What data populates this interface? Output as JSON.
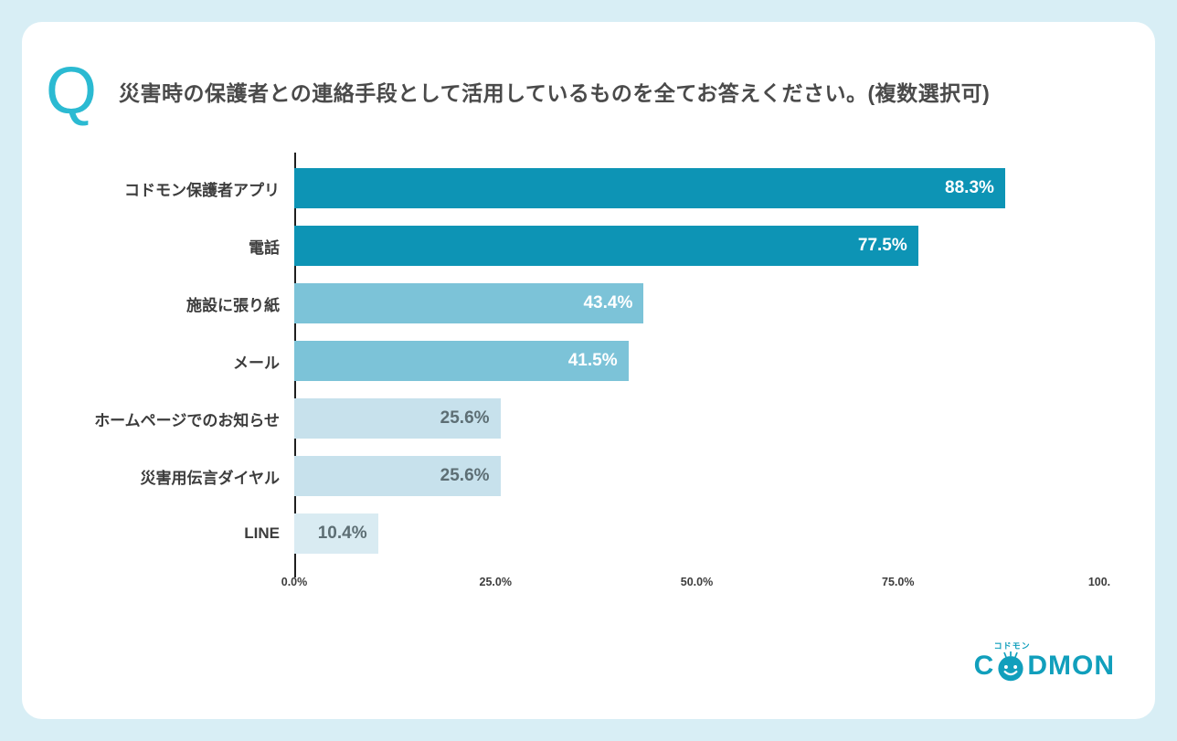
{
  "page": {
    "background": "#d8eef5",
    "card_background": "#ffffff"
  },
  "question": {
    "icon": "Q",
    "icon_color": "#2bbad2",
    "text": "災害時の保護者との連絡手段として活用しているものを全てお答えください。(複数選択可)"
  },
  "chart_data": {
    "type": "bar",
    "orientation": "horizontal",
    "title": "災害時の保護者との連絡手段として活用しているものを全てお答えください。(複数選択可)",
    "categories": [
      "コドモン保護者アプリ",
      "電話",
      "施設に張り紙",
      "メール",
      "ホームページでのお知らせ",
      "災害用伝言ダイヤル",
      "LINE"
    ],
    "values": [
      88.3,
      77.5,
      43.4,
      41.5,
      25.6,
      25.6,
      10.4
    ],
    "value_labels": [
      "88.3%",
      "77.5%",
      "43.4%",
      "41.5%",
      "25.6%",
      "25.6%",
      "10.4%"
    ],
    "bar_colors": [
      "#0d94b5",
      "#0d94b5",
      "#7cc3d8",
      "#7cc3d8",
      "#c7e1ec",
      "#c7e1ec",
      "#d9ebf2"
    ],
    "value_label_colors": [
      "#ffffff",
      "#ffffff",
      "#ffffff",
      "#ffffff",
      "#5d6e74",
      "#5d6e74",
      "#5d6e74"
    ],
    "x_ticks": [
      "0.0%",
      "25.0%",
      "50.0%",
      "75.0%",
      "100."
    ],
    "tick_positions": [
      0,
      25,
      50,
      75,
      100
    ],
    "xlim": [
      0,
      100
    ],
    "xlabel": "",
    "ylabel": "",
    "grid": false,
    "legend": false
  },
  "logo": {
    "prefix": "C",
    "suffix": "DMON",
    "kana": "コドモン",
    "color": "#119fbc"
  }
}
